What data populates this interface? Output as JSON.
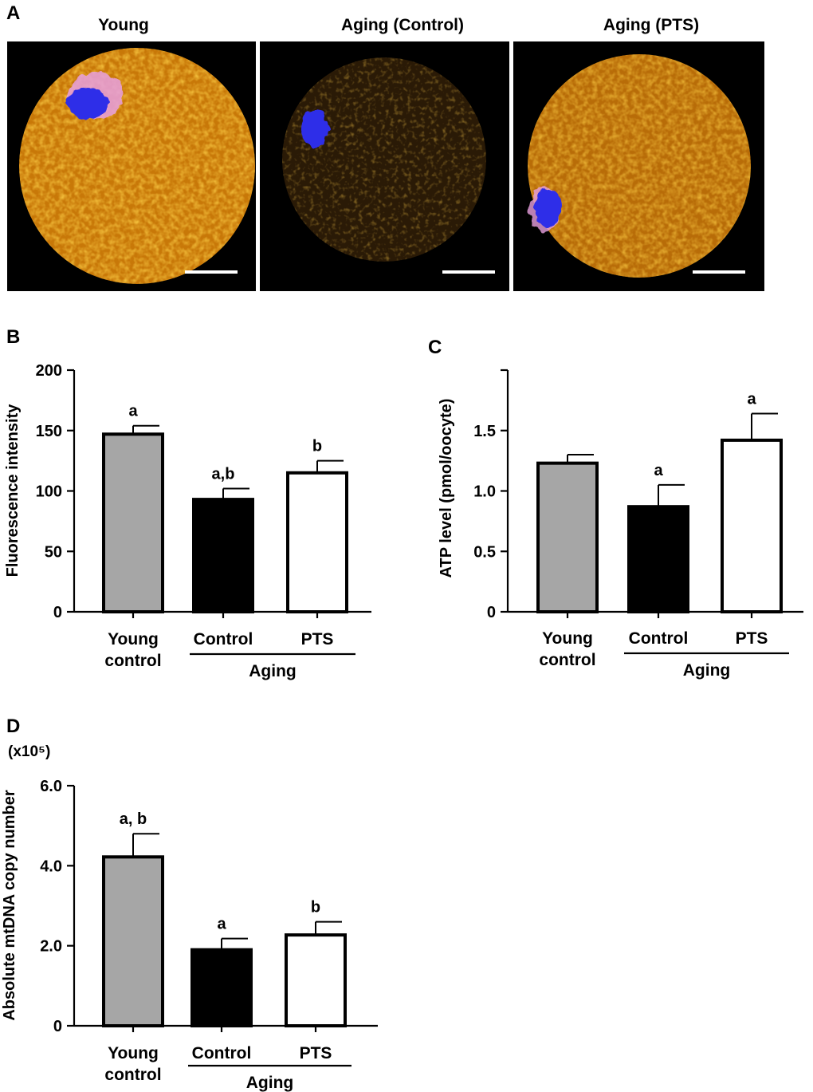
{
  "panel_a": {
    "letter": "A",
    "titles": [
      "Young",
      "Aging (Control)",
      "Aging (PTS)"
    ],
    "colors": {
      "cytoplasm": "#e8900f",
      "dna": "#2a2af0",
      "spindle": "#f08ad8",
      "background": "#000000",
      "scalebar": "#ffffff"
    },
    "intensity": [
      1.0,
      0.32,
      0.78
    ]
  },
  "colors": {
    "young": "#a6a6a6",
    "control": "#000000",
    "pts": "#ffffff",
    "stroke": "#000000"
  },
  "chart_data": [
    {
      "type": "bar",
      "panel": "B",
      "categories": [
        "Young control",
        "Control",
        "PTS"
      ],
      "category_lines": [
        [
          "Young",
          "control"
        ],
        [
          "Control"
        ],
        [
          "PTS"
        ]
      ],
      "group_label": "Aging",
      "values": [
        147,
        93,
        115
      ],
      "errors": [
        7,
        9,
        10
      ],
      "annotations": [
        "a",
        "a,b",
        "b"
      ],
      "ylabel": "Fluorescence intensity",
      "ylim": [
        0,
        200
      ],
      "yticks": [
        0,
        50,
        100,
        150,
        200
      ],
      "ytick_labels": [
        "0",
        "50",
        "100",
        "150",
        "200"
      ],
      "yunit": ""
    },
    {
      "type": "bar",
      "panel": "C",
      "categories": [
        "Young control",
        "Control",
        "PTS"
      ],
      "category_lines": [
        [
          "Young",
          "control"
        ],
        [
          "Control"
        ],
        [
          "PTS"
        ]
      ],
      "group_label": "Aging",
      "values": [
        1.23,
        0.87,
        1.42
      ],
      "errors": [
        0.07,
        0.18,
        0.22
      ],
      "annotations": [
        "",
        "a",
        "a"
      ],
      "ylabel": "ATP level (pmol/oocyte)",
      "ylim": [
        0,
        2.0
      ],
      "yticks": [
        0,
        0.5,
        1.0,
        1.5
      ],
      "ytick_labels": [
        "0",
        "0.5",
        "1.0",
        "1.5"
      ],
      "yunit": ""
    },
    {
      "type": "bar",
      "panel": "D",
      "categories": [
        "Young control",
        "Control",
        "PTS"
      ],
      "category_lines": [
        [
          "Young",
          "control"
        ],
        [
          "Control"
        ],
        [
          "PTS"
        ]
      ],
      "group_label": "Aging",
      "values": [
        4.22,
        1.9,
        2.27
      ],
      "errors": [
        0.58,
        0.28,
        0.33
      ],
      "annotations": [
        "a, b",
        "a",
        "b"
      ],
      "ylabel": "Absolute mtDNA copy number",
      "ylim": [
        0,
        6.0
      ],
      "yticks": [
        0,
        2.0,
        4.0,
        6.0
      ],
      "ytick_labels": [
        "0",
        "2.0",
        "4.0",
        "6.0"
      ],
      "yunit": "(x10⁵)"
    }
  ]
}
